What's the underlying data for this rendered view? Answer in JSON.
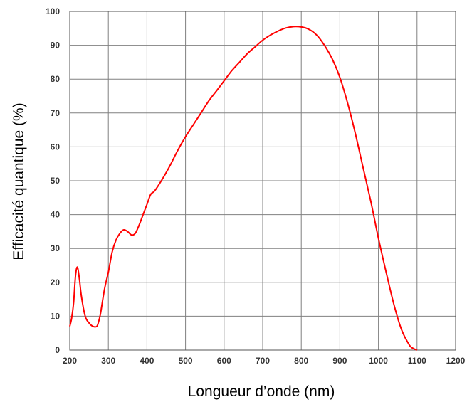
{
  "chart_data": {
    "type": "line",
    "title": "",
    "xlabel": "Longueur d’onde (nm)",
    "ylabel": "Efficacité quantique (%)",
    "xlim": [
      200,
      1200
    ],
    "ylim": [
      0,
      100
    ],
    "xticks": [
      "200",
      "300",
      "400",
      "500",
      "600",
      "700",
      "800",
      "900",
      "1000",
      "1100",
      "1200"
    ],
    "yticks": [
      "0",
      "10",
      "20",
      "30",
      "40",
      "50",
      "60",
      "70",
      "80",
      "90",
      "100"
    ],
    "grid": true,
    "legend": "none",
    "series": [
      {
        "color": "#ff0000",
        "x": [
          200,
          205,
          210,
          215,
          220,
          225,
          230,
          240,
          250,
          260,
          270,
          275,
          280,
          290,
          300,
          310,
          320,
          330,
          340,
          350,
          360,
          370,
          380,
          390,
          400,
          410,
          420,
          440,
          460,
          480,
          500,
          520,
          540,
          560,
          580,
          600,
          620,
          640,
          660,
          680,
          700,
          720,
          740,
          760,
          780,
          800,
          820,
          840,
          860,
          880,
          900,
          920,
          940,
          960,
          980,
          1000,
          1020,
          1040,
          1060,
          1080,
          1090,
          1100
        ],
        "y": [
          7,
          9.5,
          14,
          22,
          24.5,
          21,
          16,
          10,
          8,
          7,
          7,
          8.5,
          11,
          18,
          23,
          29,
          32.5,
          34.5,
          35.5,
          35,
          34,
          34.5,
          37,
          40,
          43,
          46,
          47,
          50.5,
          54.5,
          59,
          63,
          66.5,
          70,
          73.5,
          76.5,
          79.5,
          82.5,
          85,
          87.5,
          89.5,
          91.5,
          93,
          94.2,
          95.1,
          95.5,
          95.4,
          94.7,
          93,
          90,
          86,
          80.5,
          73,
          64,
          54,
          44,
          33,
          23,
          13.5,
          6,
          1.5,
          0.5,
          0
        ]
      }
    ]
  }
}
